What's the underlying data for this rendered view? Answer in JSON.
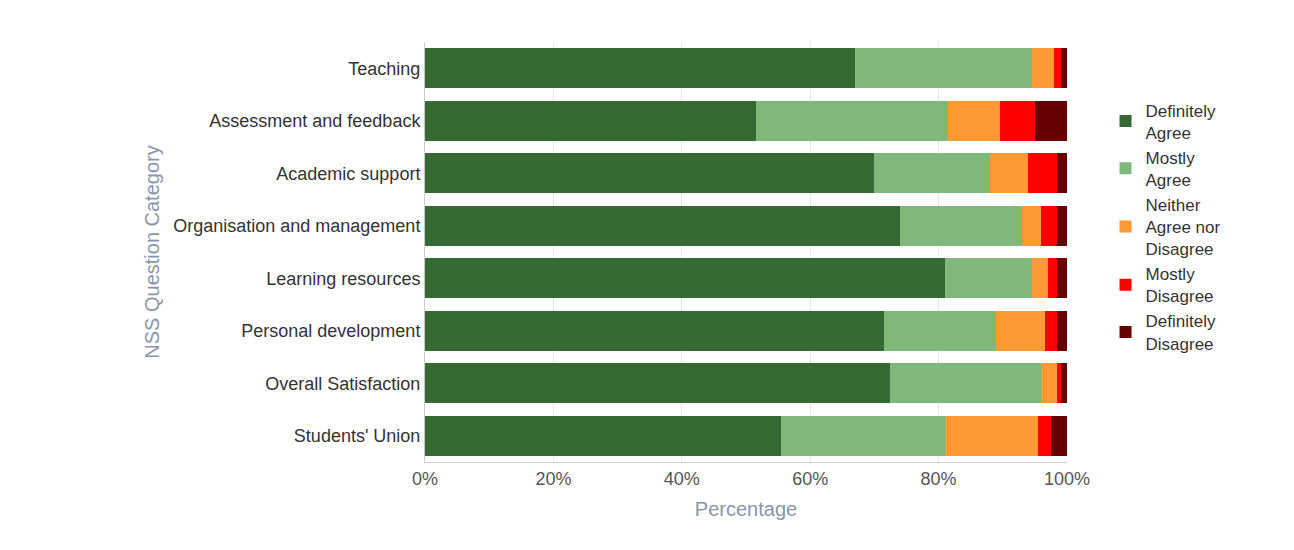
{
  "chart_data": {
    "type": "bar",
    "orientation": "horizontal",
    "stacked": true,
    "grid": true,
    "legend": "right",
    "x_label": "Percentage",
    "y_label": "NSS Question Category",
    "categories": [
      "Teaching",
      "Assessment and feedback",
      "Academic support",
      "Organisation and management",
      "Learning resources",
      "Personal development",
      "Overall Satisfaction",
      "Students' Union"
    ],
    "series": [
      {
        "name": "Definitely Agree",
        "color": "#356a32",
        "values": [
          67,
          51.5,
          70,
          74,
          81,
          71.5,
          72.5,
          55.5
        ]
      },
      {
        "name": "Mostly Agree",
        "color": "#80b77a",
        "values": [
          27.5,
          30,
          18,
          19,
          13.5,
          17.5,
          23.5,
          25.5
        ]
      },
      {
        "name": "Neither Agree nor Disagree",
        "color": "#ff9933",
        "values": [
          3.5,
          8,
          6,
          3,
          2.5,
          7.5,
          2.5,
          14.5
        ]
      },
      {
        "name": "Mostly Disagree",
        "color": "#ff0000",
        "values": [
          1,
          5.5,
          4.5,
          2.5,
          1.5,
          2,
          0.5,
          2
        ]
      },
      {
        "name": "Definitely Disagree",
        "color": "#660000",
        "values": [
          1,
          5,
          1.5,
          1.5,
          1.5,
          1.5,
          1,
          2.5
        ]
      }
    ],
    "xlim": [
      0,
      100
    ],
    "xticks": [
      {
        "value": 0,
        "label": "0%"
      },
      {
        "value": 20,
        "label": "20%"
      },
      {
        "value": 40,
        "label": "40%"
      },
      {
        "value": 60,
        "label": "60%"
      },
      {
        "value": 80,
        "label": "80%"
      },
      {
        "value": 100,
        "label": "100%"
      }
    ]
  }
}
